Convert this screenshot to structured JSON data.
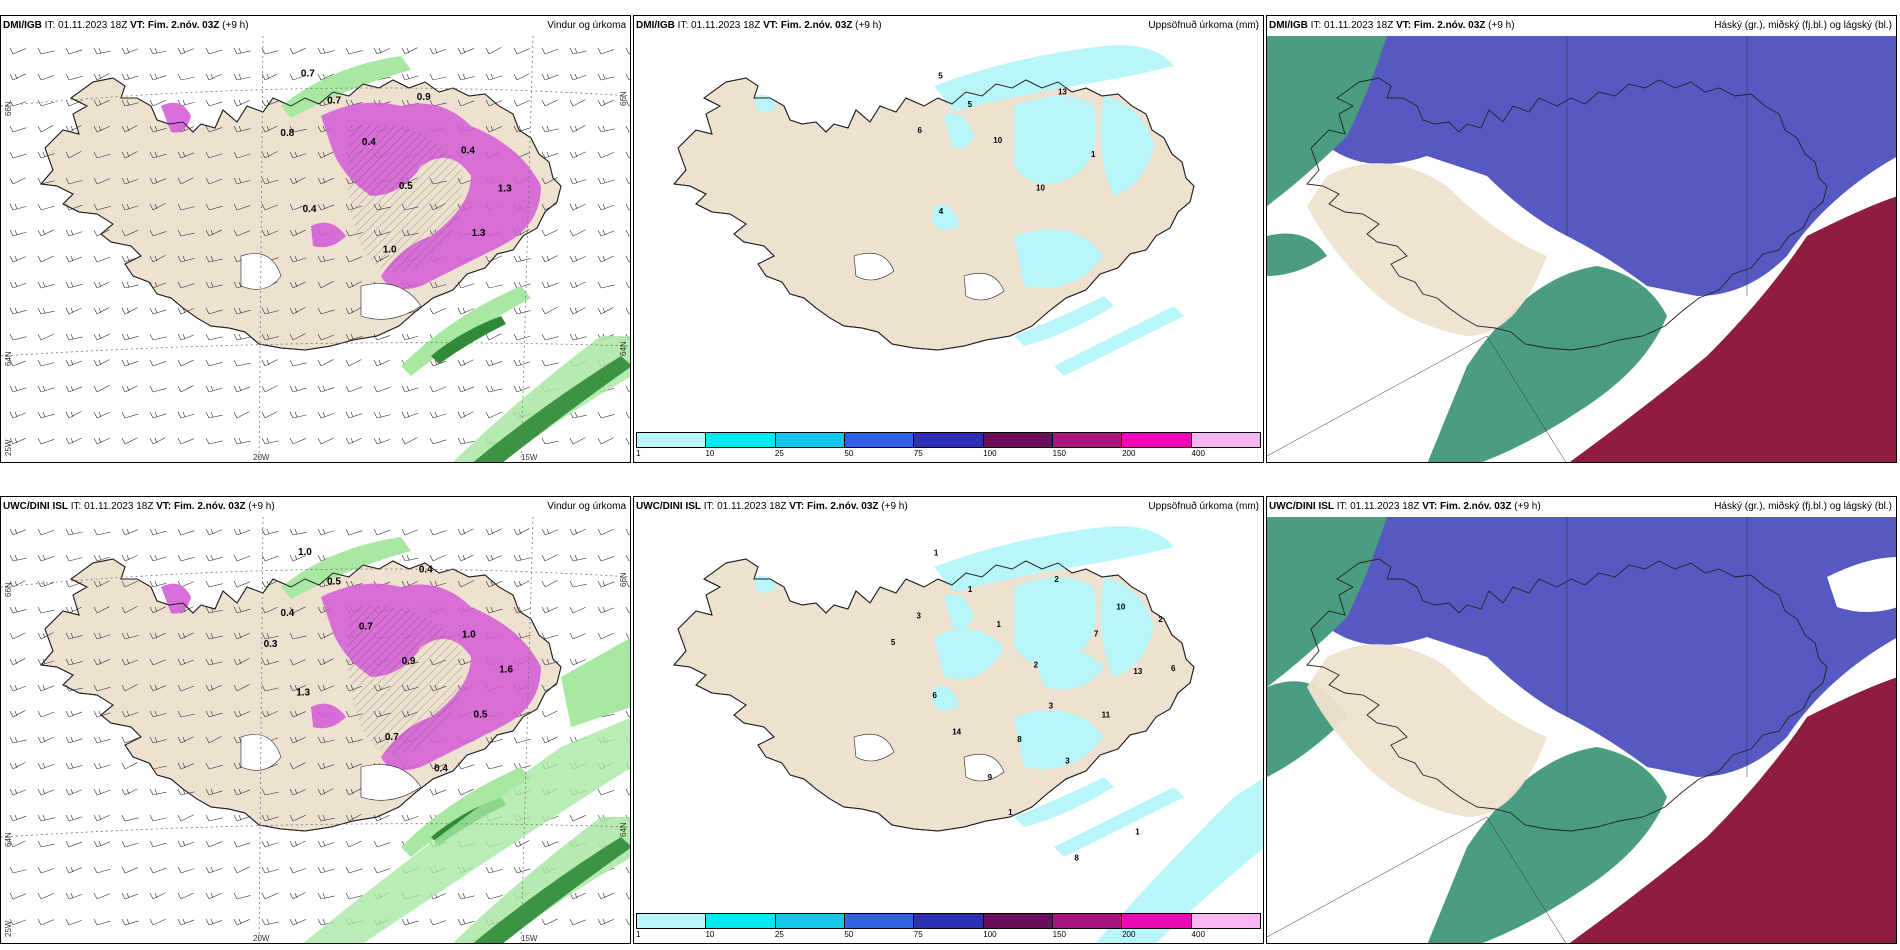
{
  "panels": [
    {
      "id": "p1",
      "model": "DMI/IGB",
      "init": "IT: 01.11.2023 18Z",
      "vt_label": "VT:",
      "vt": "Fim. 2.nóv. 03Z",
      "lead": "(+9 h)",
      "product": "Vindur og úrkoma",
      "type": "wind",
      "labels": [
        "0.7",
        "0.7",
        "0.8",
        "0.9",
        "0.4",
        "0.5",
        "0.4",
        "0.4",
        "1.0",
        "1.3",
        "1.3"
      ],
      "graticule": {
        "lat_top": "66N",
        "lat_mid": "64N",
        "lon_left": "20W",
        "lon_right": "15W",
        "corner": "25W"
      }
    },
    {
      "id": "p2",
      "model": "DMI/IGB",
      "init": "IT: 01.11.2023 18Z",
      "vt_label": "VT:",
      "vt": "Fim. 2.nóv. 03Z",
      "lead": "(+9 h)",
      "product": "Uppsöfnuð úrkoma (mm)",
      "type": "precip",
      "labels": [
        "5",
        "5",
        "6",
        "13",
        "10",
        "10",
        "4",
        "1"
      ]
    },
    {
      "id": "p3",
      "model": "DMI/IGB",
      "init": "IT: 01.11.2023 18Z",
      "vt_label": "VT:",
      "vt": "Fim. 2.nóv. 03Z",
      "lead": "(+9 h)",
      "product": "Háský (gr.), miðský (fj.bl.) og lágský (bl.)",
      "type": "cloud",
      "labels": []
    },
    {
      "id": "p4",
      "model": "UWC/DINI ISL",
      "init": "IT: 01.11.2023 18Z",
      "vt_label": "VT:",
      "vt": "Fim. 2.nóv. 03Z",
      "lead": "(+9 h)",
      "product": "Vindur og úrkoma",
      "type": "wind",
      "labels": [
        "1.0",
        "0.5",
        "0.4",
        "0.4",
        "0.7",
        "0.9",
        "1.3",
        "1.0",
        "0.7",
        "0.5",
        "1.6",
        "0.3",
        "0.4"
      ],
      "graticule": {
        "lat_top": "66N",
        "lat_mid": "64N",
        "lon_left": "20W",
        "lon_right": "15W",
        "corner": "25W"
      }
    },
    {
      "id": "p5",
      "model": "UWC/DINI ISL",
      "init": "IT: 01.11.2023 18Z",
      "vt_label": "VT:",
      "vt": "Fim. 2.nóv. 03Z",
      "lead": "(+9 h)",
      "product": "Uppsöfnuð úrkoma (mm)",
      "type": "precip",
      "labels": [
        "1",
        "1",
        "3",
        "2",
        "1",
        "2",
        "6",
        "7",
        "8",
        "11",
        "13",
        "5",
        "3",
        "2",
        "9",
        "10",
        "14",
        "6",
        "3",
        "1",
        "8",
        "1"
      ]
    },
    {
      "id": "p6",
      "model": "UWC/DINI ISL",
      "init": "IT: 01.11.2023 18Z",
      "vt_label": "VT:",
      "vt": "Fim. 2.nóv. 03Z",
      "lead": "(+9 h)",
      "product": "Háský (gr.), miðský (fj.bl.) og lágský (bl.)",
      "type": "cloud",
      "labels": []
    }
  ],
  "colorbar": {
    "colors": [
      "#b9f6f9",
      "#00e9f0",
      "#14c8ec",
      "#3062e4",
      "#2c2fb4",
      "#6a0d5a",
      "#a8157e",
      "#f007b6",
      "#f7b6f1"
    ],
    "labels": [
      "1",
      "10",
      "25",
      "50",
      "75",
      "100",
      "150",
      "200",
      "400"
    ]
  },
  "colors": {
    "land": "#efe1cf",
    "coast": "#222222",
    "precip_pink": "#d55fd7",
    "precip_light": "#a8e8a2",
    "precip_green": "#2f8a38",
    "cyan": "#b9f6f9",
    "cloud_blue": "#5659c2",
    "cloud_green": "#4a9d80",
    "cloud_red": "#8f1d3e",
    "cloud_white": "#ffffff"
  }
}
